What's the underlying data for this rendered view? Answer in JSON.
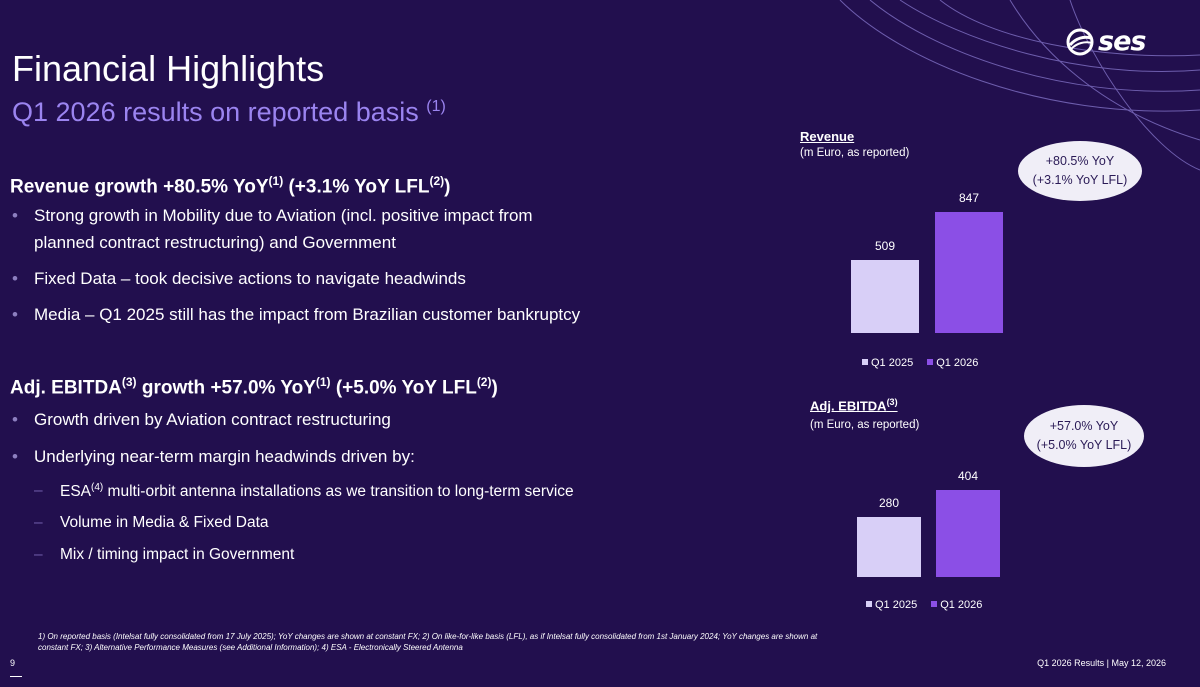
{
  "header": {
    "logo_text": "ses",
    "title": "Financial Highlights",
    "subtitle": "Q1 2026 results on reported basis",
    "subtitle_note": "(1)"
  },
  "revenue_section": {
    "heading_a": "Revenue growth +80.5% YoY",
    "heading_sup1": "(1)",
    "heading_b": " (+3.1% YoY LFL",
    "heading_sup2": "(2)",
    "heading_c": ")",
    "bullets": [
      {
        "line1": "Strong growth in Mobility due to Aviation (incl. positive impact from",
        "line2": "planned contract restructuring) and Government"
      },
      {
        "line1": "Fixed Data – took decisive actions to navigate headwinds"
      },
      {
        "line1": "Media – Q1 2025 still has the impact from Brazilian customer bankruptcy"
      }
    ]
  },
  "ebitda_section": {
    "heading_a": "Adj. EBITDA",
    "heading_sup1": "(3)",
    "heading_b": " growth +57.0% YoY",
    "heading_sup2": "(1)",
    "heading_c": " (+5.0% YoY LFL",
    "heading_sup3": "(2)",
    "heading_d": ")",
    "bullets": [
      "Growth driven by Aviation contract restructuring",
      "Underlying near-term margin headwinds driven by:"
    ],
    "sub_bullets": [
      {
        "pre": "ESA",
        "sup": "(4)",
        "post": " multi-orbit antenna installations as we transition to long-term service"
      },
      {
        "pre": "Volume in Media & Fixed Data",
        "sup": "",
        "post": ""
      },
      {
        "pre": "Mix / timing impact in Government",
        "sup": "",
        "post": ""
      }
    ],
    "bullet_symbol": "•",
    "dash_symbol": "–"
  },
  "colors": {
    "background": "#220f4e",
    "q1_2025": "#d8cff7",
    "q1_2026": "#8b4fe6",
    "subtitle": "#9b84f0"
  },
  "chart_data": [
    {
      "type": "bar",
      "title": "Revenue",
      "subtitle": "(m Euro, as reported)",
      "categories": [
        "Q1 2025",
        "Q1 2026"
      ],
      "values": [
        509,
        847
      ],
      "legend": [
        "Q1 2025",
        "Q1 2026"
      ],
      "callout": {
        "line1": "+80.5% YoY",
        "line2": "(+3.1% YoY LFL)"
      }
    },
    {
      "type": "bar",
      "title": "Adj. EBITDA",
      "title_sup": "(3)",
      "subtitle": "(m Euro, as reported)",
      "categories": [
        "Q1 2025",
        "Q1 2026"
      ],
      "values": [
        280,
        404
      ],
      "legend": [
        "Q1 2025",
        "Q1 2026"
      ],
      "callout": {
        "line1": "+57.0% YoY",
        "line2": "(+5.0% YoY LFL)"
      }
    }
  ],
  "footnote": {
    "line1": "1) On reported basis (Intelsat fully consolidated from 17 July 2025); YoY changes are shown at constant FX;   2) On like-for-like basis (LFL), as if Intelsat fully consolidated from 1st January 2024;  YoY changes are shown at",
    "line2": "constant FX;  3) Alternative Performance Measures (see Additional Information); 4) ESA - Electronically Steered Antenna"
  },
  "footer": {
    "page_number": "9",
    "right": "Q1 2026 Results | May 12, 2026"
  }
}
